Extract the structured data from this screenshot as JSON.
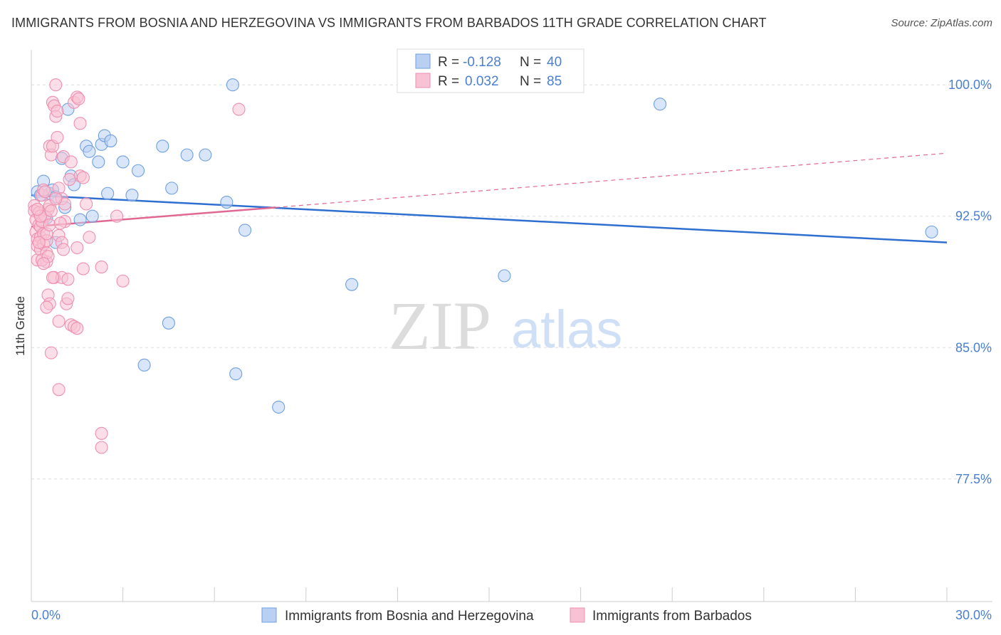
{
  "header": {
    "title": "IMMIGRANTS FROM BOSNIA AND HERZEGOVINA VS IMMIGRANTS FROM BARBADOS 11TH GRADE CORRELATION CHART",
    "source": "Source: ZipAtlas.com"
  },
  "watermark": {
    "zip": "ZIP",
    "atlas": "atlas"
  },
  "colors": {
    "blue": "#6fa0e0",
    "blue_fill": "#b9d0f2",
    "blue_line": "#2f6fcf",
    "pink": "#ee8fb0",
    "pink_fill": "#f7c2d4",
    "pink_line": "#e06893",
    "axis_text": "#4a7fd1",
    "grid": "#dddddd"
  },
  "legend": {
    "rows": [
      {
        "r_label": "R = ",
        "r_value": "-0.128",
        "n_label": "N = ",
        "n_value": "40"
      },
      {
        "r_label": "R = ",
        "r_value": "0.032",
        "n_label": "N = ",
        "n_value": "85"
      }
    ]
  },
  "chart_data": {
    "type": "scatter",
    "title": "IMMIGRANTS FROM BOSNIA AND HERZEGOVINA VS IMMIGRANTS FROM BARBADOS 11TH GRADE CORRELATION CHART",
    "xlabel": "",
    "ylabel": "11th Grade",
    "xlim": [
      0,
      30
    ],
    "ylim": [
      70.5,
      102
    ],
    "x_tick_labels": [
      "0.0%",
      "30.0%"
    ],
    "y_ticks": [
      77.5,
      85.0,
      92.5,
      100.0
    ],
    "y_tick_labels": [
      "77.5%",
      "85.0%",
      "92.5%",
      "100.0%"
    ],
    "grid": true,
    "legend_position": "bottom",
    "series": [
      {
        "name": "Immigrants from Bosnia and Herzegovina",
        "color": "blue",
        "r": -0.128,
        "n": 40,
        "trend": {
          "x0": 0,
          "y0": 93.7,
          "x1": 30,
          "y1": 91.0
        },
        "points": [
          [
            0.2,
            93.9
          ],
          [
            0.3,
            93.7
          ],
          [
            0.4,
            94.5
          ],
          [
            0.5,
            92.4
          ],
          [
            0.6,
            93.8
          ],
          [
            0.7,
            94.0
          ],
          [
            0.8,
            93.6
          ],
          [
            0.8,
            91.0
          ],
          [
            1.0,
            95.8
          ],
          [
            1.1,
            93.0
          ],
          [
            1.3,
            94.8
          ],
          [
            1.4,
            94.3
          ],
          [
            1.6,
            92.3
          ],
          [
            1.8,
            96.5
          ],
          [
            1.9,
            96.2
          ],
          [
            2.2,
            95.6
          ],
          [
            2.3,
            96.6
          ],
          [
            2.4,
            97.1
          ],
          [
            2.6,
            96.8
          ],
          [
            2.5,
            93.8
          ],
          [
            3.0,
            95.6
          ],
          [
            3.3,
            93.7
          ],
          [
            3.5,
            95.1
          ],
          [
            4.3,
            96.5
          ],
          [
            4.6,
            94.1
          ],
          [
            5.1,
            96.0
          ],
          [
            5.7,
            96.0
          ],
          [
            6.4,
            93.3
          ],
          [
            6.6,
            100.0
          ],
          [
            7.0,
            91.7
          ],
          [
            4.5,
            86.4
          ],
          [
            3.7,
            84.0
          ],
          [
            6.7,
            83.5
          ],
          [
            8.1,
            81.6
          ],
          [
            10.5,
            88.6
          ],
          [
            15.5,
            89.1
          ],
          [
            20.6,
            98.9
          ],
          [
            29.5,
            91.6
          ],
          [
            1.2,
            98.6
          ],
          [
            2.0,
            92.5
          ]
        ]
      },
      {
        "name": "Immigrants from Barbados",
        "color": "pink",
        "r": 0.032,
        "n": 85,
        "trend": {
          "x0": 0,
          "y0": 91.9,
          "x1": 8,
          "y1": 93.0
        },
        "trend_ext": {
          "x0": 8,
          "y0": 93.0,
          "x1": 30,
          "y1": 96.1
        },
        "points": [
          [
            0.1,
            93.1
          ],
          [
            0.1,
            92.8
          ],
          [
            0.15,
            92.3
          ],
          [
            0.15,
            91.6
          ],
          [
            0.2,
            91.2
          ],
          [
            0.2,
            90.8
          ],
          [
            0.2,
            90.0
          ],
          [
            0.25,
            92.7
          ],
          [
            0.25,
            92.0
          ],
          [
            0.3,
            91.9
          ],
          [
            0.3,
            91.3
          ],
          [
            0.3,
            90.6
          ],
          [
            0.35,
            93.7
          ],
          [
            0.35,
            92.2
          ],
          [
            0.4,
            94.0
          ],
          [
            0.4,
            91.5
          ],
          [
            0.4,
            90.9
          ],
          [
            0.45,
            92.5
          ],
          [
            0.5,
            89.9
          ],
          [
            0.5,
            90.4
          ],
          [
            0.5,
            91.1
          ],
          [
            0.55,
            92.9
          ],
          [
            0.6,
            96.5
          ],
          [
            0.6,
            93.1
          ],
          [
            0.65,
            96.0
          ],
          [
            0.65,
            92.8
          ],
          [
            0.7,
            96.5
          ],
          [
            0.7,
            99.0
          ],
          [
            0.75,
            98.8
          ],
          [
            0.75,
            89.0
          ],
          [
            0.8,
            100.0
          ],
          [
            0.8,
            98.2
          ],
          [
            0.85,
            98.5
          ],
          [
            0.85,
            97.0
          ],
          [
            0.9,
            94.1
          ],
          [
            0.9,
            91.4
          ],
          [
            1.0,
            93.5
          ],
          [
            1.0,
            89.0
          ],
          [
            1.0,
            91.0
          ],
          [
            1.05,
            95.9
          ],
          [
            1.1,
            93.2
          ],
          [
            1.1,
            92.2
          ],
          [
            1.15,
            87.5
          ],
          [
            1.2,
            88.9
          ],
          [
            1.2,
            87.8
          ],
          [
            1.3,
            86.3
          ],
          [
            1.4,
            86.2
          ],
          [
            1.5,
            86.1
          ],
          [
            1.3,
            95.6
          ],
          [
            1.4,
            99.0
          ],
          [
            1.5,
            99.3
          ],
          [
            1.55,
            99.2
          ],
          [
            1.6,
            97.8
          ],
          [
            1.6,
            94.8
          ],
          [
            1.7,
            94.7
          ],
          [
            1.8,
            93.2
          ],
          [
            1.9,
            91.3
          ],
          [
            1.5,
            90.7
          ],
          [
            1.7,
            89.5
          ],
          [
            2.3,
            89.6
          ],
          [
            2.8,
            92.5
          ],
          [
            3.0,
            88.8
          ],
          [
            0.55,
            88.0
          ],
          [
            0.6,
            87.5
          ],
          [
            0.65,
            84.7
          ],
          [
            0.9,
            82.6
          ],
          [
            0.9,
            86.5
          ],
          [
            2.3,
            80.1
          ],
          [
            2.3,
            79.3
          ],
          [
            6.8,
            98.6
          ],
          [
            0.3,
            92.5
          ],
          [
            0.35,
            90.0
          ],
          [
            0.45,
            93.9
          ],
          [
            0.5,
            91.5
          ],
          [
            0.55,
            90.2
          ],
          [
            0.6,
            92.0
          ],
          [
            0.7,
            89.0
          ],
          [
            0.8,
            93.5
          ],
          [
            0.95,
            92.1
          ],
          [
            1.05,
            90.6
          ],
          [
            1.25,
            94.6
          ],
          [
            0.2,
            92.9
          ],
          [
            0.25,
            91.0
          ],
          [
            0.4,
            89.8
          ],
          [
            0.5,
            87.3
          ]
        ]
      }
    ]
  }
}
